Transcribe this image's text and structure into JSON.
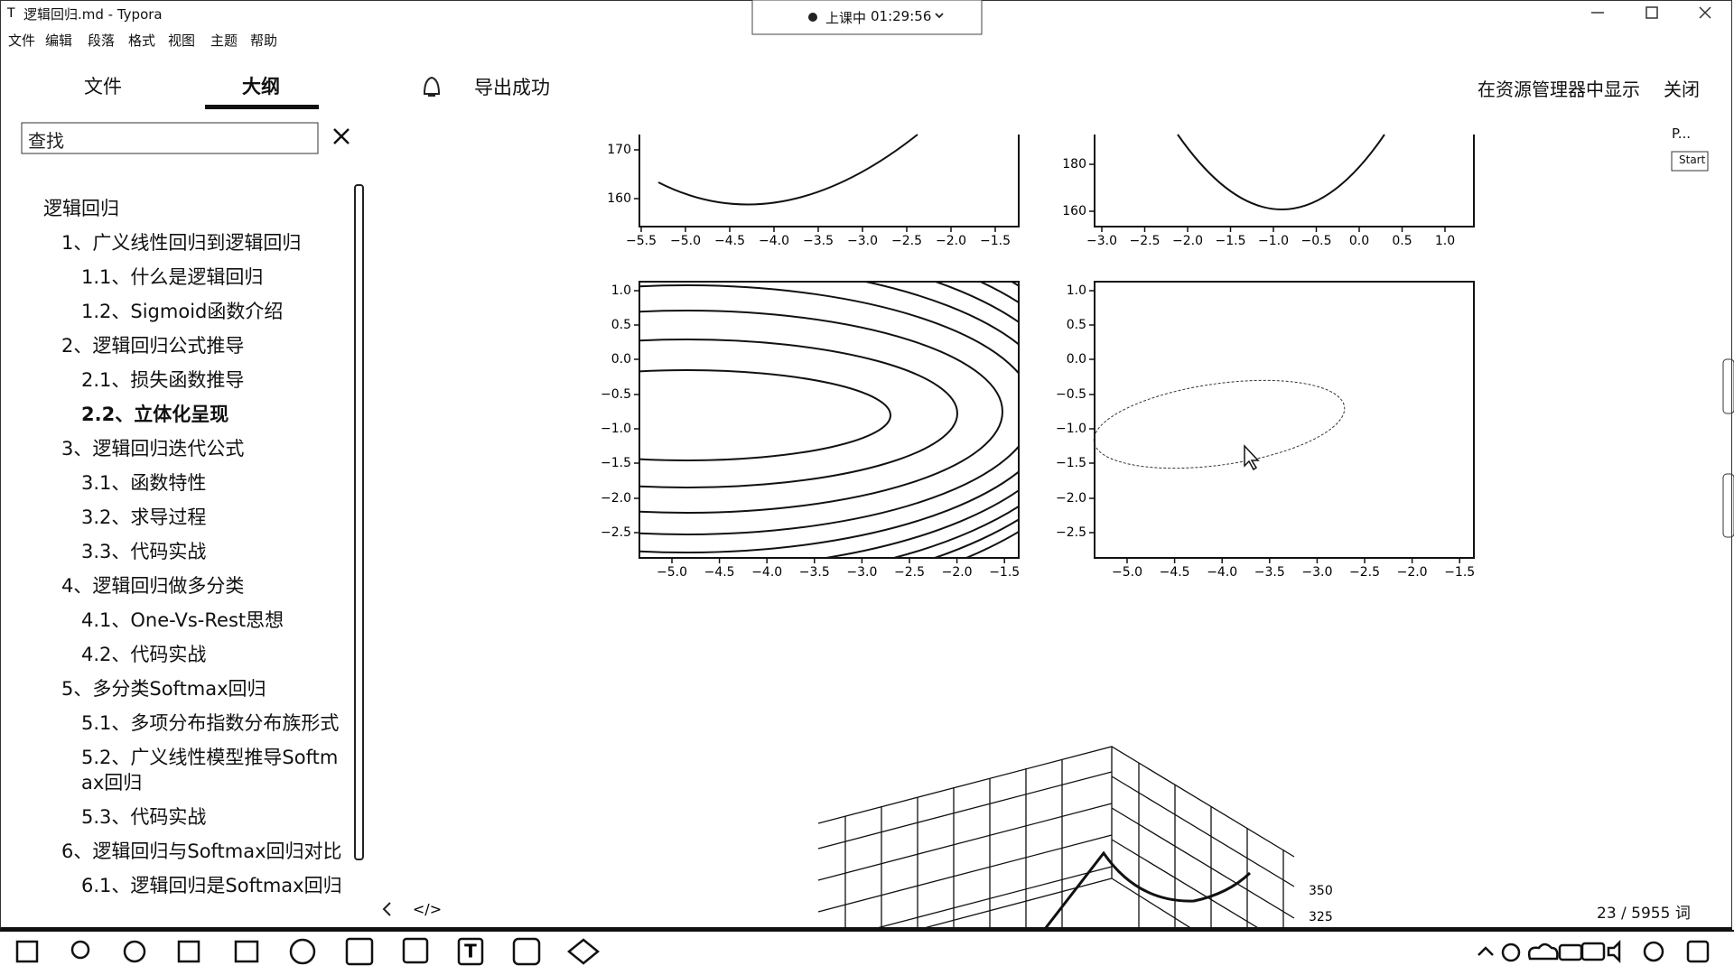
{
  "window": {
    "title": "逻辑回归.md - Typora"
  },
  "menu": [
    "文件",
    "编辑",
    "段落",
    "格式",
    "视图",
    "主题",
    "帮助"
  ],
  "timer": {
    "status": "上课中",
    "time": "01:29:56"
  },
  "sidebar": {
    "tabs": [
      "文件",
      "大纲"
    ],
    "search": "查找",
    "outline": {
      "title": "逻辑回归",
      "sections": [
        {
          "title": "1、广义线性回归到逻辑回归",
          "subsections": [
            {
              "title": "1.1、什么是逻辑回归"
            },
            {
              "title": "1.2、Sigmoid函数介绍"
            }
          ]
        },
        {
          "title": "2、逻辑回归公式推导",
          "subsections": [
            {
              "title": "2.1、损失函数推导"
            },
            {
              "title": "2.2、立体化呈现",
              "active": true
            }
          ]
        },
        {
          "title": "3、逻辑回归迭代公式",
          "subsections": [
            {
              "title": "3.1、函数特性"
            },
            {
              "title": "3.2、求导过程"
            },
            {
              "title": "3.3、代码实战"
            }
          ]
        },
        {
          "title": "4、逻辑回归做多分类",
          "subsections": [
            {
              "title": "4.1、One-Vs-Rest思想"
            },
            {
              "title": "4.2、代码实战"
            }
          ]
        },
        {
          "title": "5、多分类Softmax回归",
          "subsections": [
            {
              "title": "5.1、多项分布指数分布族形式"
            },
            {
              "title": "5.2、广义线性模型推导Softmax回归"
            },
            {
              "title": "5.3、代码实战"
            }
          ]
        },
        {
          "title": "6、逻辑回归与Softmax回归对比",
          "subsections": [
            {
              "title": "6.1、逻辑回归是Softmax回归"
            }
          ]
        }
      ]
    }
  },
  "notification": "导出成功",
  "actions": [
    "在资源管理器中显示",
    "关闭"
  ],
  "plugin": {
    "label": "P...",
    "button": "Start"
  },
  "figures": {
    "top_left": {
      "yticks": [
        "170",
        "160"
      ],
      "xticks": [
        "−5.5",
        "−5.0",
        "−4.5",
        "−4.0",
        "−3.5",
        "−3.0",
        "−2.5",
        "−2.0",
        "−1.5"
      ]
    },
    "top_right": {
      "yticks": [
        "180",
        "160"
      ],
      "xticks": [
        "−3.0",
        "−2.5",
        "−2.0",
        "−1.5",
        "−1.0",
        "−0.5",
        "0.0",
        "0.5",
        "1.0"
      ]
    },
    "bottom_left": {
      "yticks": [
        "1.0",
        "0.5",
        "0.0",
        "−0.5",
        "−1.0",
        "−1.5",
        "−2.0",
        "−2.5"
      ],
      "xticks": [
        "−5.0",
        "−4.5",
        "−4.0",
        "−3.5",
        "−3.0",
        "−2.5",
        "−2.0",
        "−1.5"
      ]
    },
    "bottom_right": {
      "yticks": [
        "1.0",
        "0.5",
        "0.0",
        "−0.5",
        "−1.0",
        "−1.5",
        "−2.0",
        "−2.5"
      ],
      "xticks": [
        "−5.0",
        "−4.5",
        "−4.0",
        "−3.5",
        "−3.0",
        "−2.5",
        "−2.0",
        "−1.5"
      ]
    },
    "surface": {
      "zticks": [
        "350",
        "325"
      ]
    }
  },
  "status": {
    "word_count": "23 / 5955 词"
  }
}
